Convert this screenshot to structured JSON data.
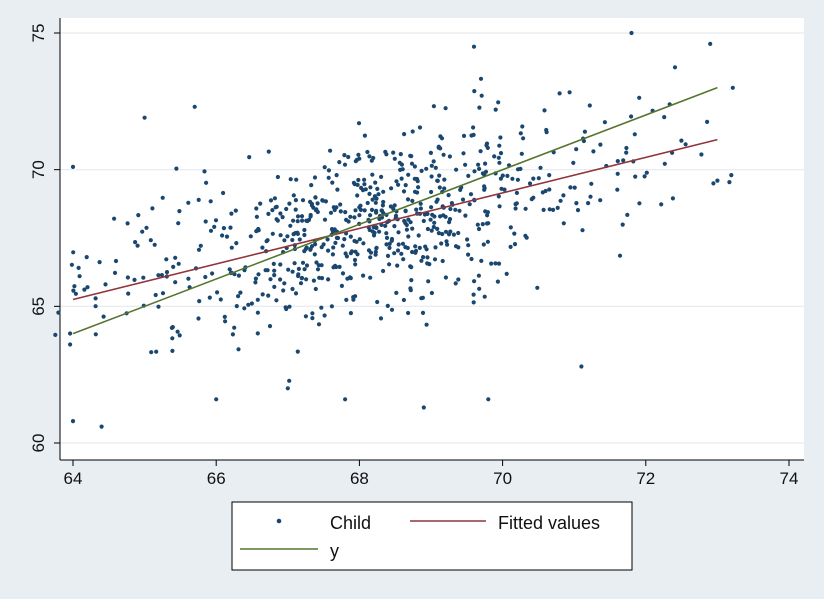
{
  "chart_data": {
    "type": "scatter",
    "title": "",
    "xlabel": "",
    "ylabel": "",
    "xlim": [
      64,
      74
    ],
    "ylim": [
      60,
      75
    ],
    "x_ticks": [
      64,
      66,
      68,
      70,
      72,
      74
    ],
    "y_ticks": [
      60,
      65,
      70,
      75
    ],
    "grid": true,
    "legend_position": "bottom",
    "series": [
      {
        "name": "Child",
        "kind": "scatter",
        "color": "#1a476f",
        "cluster_centers": [
          [
            64.2,
            65.8
          ],
          [
            65.5,
            67.2
          ],
          [
            66.5,
            67.8
          ],
          [
            67.5,
            67.6
          ],
          [
            68.3,
            68.0
          ],
          [
            69.0,
            68.6
          ],
          [
            69.8,
            68.9
          ],
          [
            70.8,
            69.2
          ],
          [
            71.8,
            70.2
          ],
          [
            72.6,
            71.6
          ]
        ],
        "notable_points": [
          [
            64.0,
            70.1
          ],
          [
            64.0,
            60.8
          ],
          [
            64.4,
            60.6
          ],
          [
            65.0,
            71.9
          ],
          [
            65.7,
            72.3
          ],
          [
            67.0,
            62.0
          ],
          [
            67.8,
            61.6
          ],
          [
            68.9,
            61.3
          ],
          [
            69.8,
            61.6
          ],
          [
            71.1,
            62.8
          ],
          [
            71.8,
            75.0
          ],
          [
            72.9,
            74.6
          ],
          [
            73.0,
            69.6
          ],
          [
            66.0,
            61.6
          ],
          [
            69.6,
            74.5
          ]
        ]
      },
      {
        "name": "Fitted values",
        "kind": "line",
        "color": "#90353b",
        "x": [
          64,
          73
        ],
        "y": [
          65.25,
          71.1
        ]
      },
      {
        "name": "y",
        "kind": "line",
        "color": "#55752f",
        "x": [
          64,
          73
        ],
        "y": [
          64.0,
          73.0
        ]
      }
    ]
  },
  "legend": {
    "child_label": "Child",
    "fitted_label": "Fitted values",
    "y_label": "y"
  }
}
